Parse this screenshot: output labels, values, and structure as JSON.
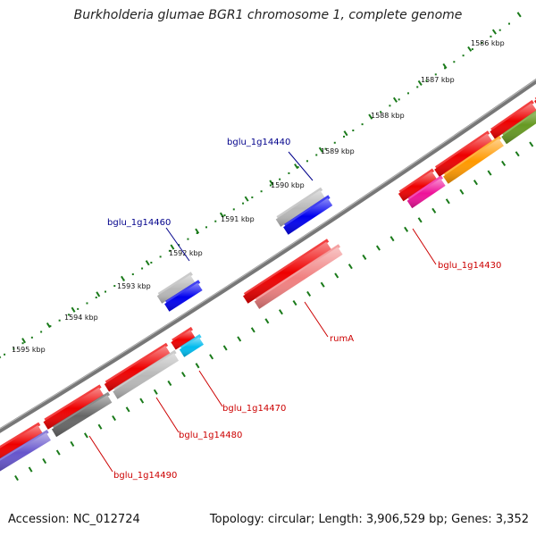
{
  "title": "Burkholderia glumae BGR1 chromosome 1, complete genome",
  "footer": {
    "accession": "Accession: NC_012724",
    "summary": "Topology: circular; Length: 3,906,529 bp; Genes: 3,352"
  },
  "ruler": {
    "ticks": [
      {
        "label": "1586 kbp"
      },
      {
        "label": "1587 kbp"
      },
      {
        "label": "1588 kbp"
      },
      {
        "label": "1589 kbp"
      },
      {
        "label": "1590 kbp"
      },
      {
        "label": "1591 kbp"
      },
      {
        "label": "1592 kbp"
      },
      {
        "label": "1593 kbp"
      },
      {
        "label": "1594 kbp"
      },
      {
        "label": "1595 kbp"
      }
    ]
  },
  "labels": {
    "bglu_1g14440": "bglu_1g14440",
    "bglu_1g14460": "bglu_1g14460",
    "bglu_1g14430": "bglu_1g14430",
    "rumA": "rumA",
    "bglu_1g14470": "bglu_1g14470",
    "bglu_1g14480": "bglu_1g14480",
    "bglu_1g14490": "bglu_1g14490"
  },
  "colors": {
    "label_blue": "#00008b",
    "label_red": "#cc0000",
    "tick_green": "#1a7a1a",
    "backbone": "#777777",
    "cds_red": "#ee0000",
    "rna_blue": "#0000ee",
    "gene_gray": "#b8b8b8",
    "gene_pink_light": "#f08080",
    "gene_cyan": "#00bbee",
    "gene_orange": "#ff9900",
    "gene_magenta": "#ee1199",
    "gene_olive": "#669922",
    "gene_khaki": "#bbbb66",
    "gene_darkgray": "#666666",
    "gene_purple": "#6655cc"
  }
}
